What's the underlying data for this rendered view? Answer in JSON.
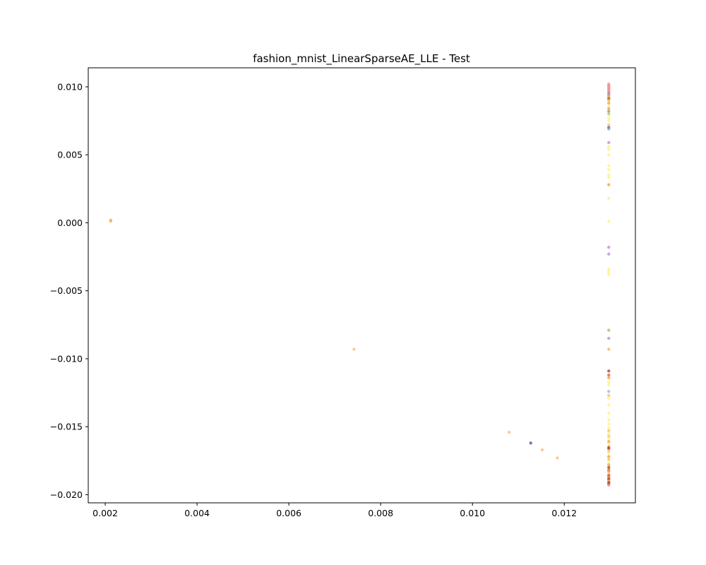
{
  "chart_data": {
    "type": "scatter",
    "title": "fashion_mnist_LinearSparseAE_LLE - Test",
    "xlabel": "",
    "ylabel": "",
    "xlim": [
      0.00163,
      0.01355
    ],
    "ylim": [
      -0.0206,
      0.0114
    ],
    "grid": false,
    "legend": "none",
    "xticks": [
      {
        "value": 0.002,
        "label": "0.002"
      },
      {
        "value": 0.004,
        "label": "0.004"
      },
      {
        "value": 0.006,
        "label": "0.006"
      },
      {
        "value": 0.008,
        "label": "0.008"
      },
      {
        "value": 0.01,
        "label": "0.010"
      },
      {
        "value": 0.012,
        "label": "0.012"
      }
    ],
    "yticks": [
      {
        "value": 0.01,
        "label": "0.010"
      },
      {
        "value": 0.005,
        "label": "0.005"
      },
      {
        "value": 0.0,
        "label": "0.000"
      },
      {
        "value": -0.005,
        "label": "−0.005"
      },
      {
        "value": -0.01,
        "label": "−0.010"
      },
      {
        "value": -0.015,
        "label": "−0.015"
      },
      {
        "value": -0.02,
        "label": "−0.020"
      }
    ],
    "points": [
      {
        "x": 0.00212,
        "y": 0.00018,
        "color": "#f5a030"
      },
      {
        "x": 0.00212,
        "y": 0.00012,
        "color": "#f7b060"
      },
      {
        "x": 0.00742,
        "y": -0.0093,
        "color": "#f7b870"
      },
      {
        "x": 0.0108,
        "y": -0.0154,
        "color": "#f7b870"
      },
      {
        "x": 0.01127,
        "y": -0.0162,
        "color": "#4b4ba8"
      },
      {
        "x": 0.01152,
        "y": -0.0167,
        "color": "#f7b870"
      },
      {
        "x": 0.01185,
        "y": -0.0173,
        "color": "#f7b870"
      },
      {
        "x": 0.01297,
        "y": 0.0102,
        "color": "#f48c8c"
      },
      {
        "x": 0.01297,
        "y": 0.0101,
        "color": "#f48c8c"
      },
      {
        "x": 0.01297,
        "y": 0.01,
        "color": "#f48c8c"
      },
      {
        "x": 0.01297,
        "y": 0.0099,
        "color": "#f48c8c"
      },
      {
        "x": 0.01297,
        "y": 0.0098,
        "color": "#f48c8c"
      },
      {
        "x": 0.01297,
        "y": 0.0097,
        "color": "#f48c8c"
      },
      {
        "x": 0.01297,
        "y": 0.0096,
        "color": "#f48c8c"
      },
      {
        "x": 0.01297,
        "y": 0.0095,
        "color": "#6a8fc8"
      },
      {
        "x": 0.01297,
        "y": 0.0094,
        "color": "#f48c8c"
      },
      {
        "x": 0.01297,
        "y": 0.0093,
        "color": "#8fc05a"
      },
      {
        "x": 0.01297,
        "y": 0.0092,
        "color": "#f5a030"
      },
      {
        "x": 0.01297,
        "y": 0.0091,
        "color": "#a83a3a"
      },
      {
        "x": 0.01297,
        "y": 0.009,
        "color": "#f7c060"
      },
      {
        "x": 0.01297,
        "y": 0.0088,
        "color": "#f5a030"
      },
      {
        "x": 0.01297,
        "y": 0.0086,
        "color": "#fff27a"
      },
      {
        "x": 0.01297,
        "y": 0.0084,
        "color": "#c8a878"
      },
      {
        "x": 0.01297,
        "y": 0.0082,
        "color": "#d08040"
      },
      {
        "x": 0.01297,
        "y": 0.008,
        "color": "#a0d070"
      },
      {
        "x": 0.01297,
        "y": 0.0077,
        "color": "#fff27a"
      },
      {
        "x": 0.01297,
        "y": 0.0075,
        "color": "#fff27a"
      },
      {
        "x": 0.01297,
        "y": 0.0072,
        "color": "#f7c060"
      },
      {
        "x": 0.01297,
        "y": 0.007,
        "color": "#4b4ba8"
      },
      {
        "x": 0.01297,
        "y": 0.0069,
        "color": "#8fa8c8"
      },
      {
        "x": 0.01297,
        "y": 0.0059,
        "color": "#b888d0"
      },
      {
        "x": 0.01297,
        "y": 0.0056,
        "color": "#fff27a"
      },
      {
        "x": 0.01297,
        "y": 0.0054,
        "color": "#fff27a"
      },
      {
        "x": 0.01297,
        "y": 0.005,
        "color": "#fff27a"
      },
      {
        "x": 0.01297,
        "y": 0.0042,
        "color": "#fff27a"
      },
      {
        "x": 0.01297,
        "y": 0.0039,
        "color": "#fff27a"
      },
      {
        "x": 0.01297,
        "y": 0.0035,
        "color": "#fff27a"
      },
      {
        "x": 0.01297,
        "y": 0.0033,
        "color": "#fff27a"
      },
      {
        "x": 0.01297,
        "y": 0.0028,
        "color": "#f5a030"
      },
      {
        "x": 0.01297,
        "y": 0.0018,
        "color": "#fff27a"
      },
      {
        "x": 0.01297,
        "y": 0.0001,
        "color": "#fff27a"
      },
      {
        "x": 0.01297,
        "y": -0.0018,
        "color": "#b888d0"
      },
      {
        "x": 0.01297,
        "y": -0.0023,
        "color": "#b888d0"
      },
      {
        "x": 0.01297,
        "y": -0.0034,
        "color": "#fff27a"
      },
      {
        "x": 0.01297,
        "y": -0.0036,
        "color": "#fff27a"
      },
      {
        "x": 0.01297,
        "y": -0.0038,
        "color": "#fff27a"
      },
      {
        "x": 0.01297,
        "y": -0.0079,
        "color": "#8fc05a"
      },
      {
        "x": 0.01297,
        "y": -0.0085,
        "color": "#b888d0"
      },
      {
        "x": 0.01297,
        "y": -0.0093,
        "color": "#f7b060"
      },
      {
        "x": 0.01297,
        "y": -0.0109,
        "color": "#a83a3a"
      },
      {
        "x": 0.01297,
        "y": -0.0112,
        "color": "#d06040"
      },
      {
        "x": 0.01297,
        "y": -0.0114,
        "color": "#f5a030"
      },
      {
        "x": 0.01297,
        "y": -0.0117,
        "color": "#fff27a"
      },
      {
        "x": 0.01297,
        "y": -0.0119,
        "color": "#fff27a"
      },
      {
        "x": 0.01297,
        "y": -0.0124,
        "color": "#8fb8e0"
      },
      {
        "x": 0.01297,
        "y": -0.0127,
        "color": "#f7c060"
      },
      {
        "x": 0.01297,
        "y": -0.0129,
        "color": "#fff27a"
      },
      {
        "x": 0.01297,
        "y": -0.0134,
        "color": "#fff27a"
      },
      {
        "x": 0.01297,
        "y": -0.014,
        "color": "#fff27a"
      },
      {
        "x": 0.01297,
        "y": -0.0145,
        "color": "#fff27a"
      },
      {
        "x": 0.01297,
        "y": -0.0148,
        "color": "#fff27a"
      },
      {
        "x": 0.01297,
        "y": -0.0151,
        "color": "#fff27a"
      },
      {
        "x": 0.01297,
        "y": -0.0153,
        "color": "#f7c060"
      },
      {
        "x": 0.01297,
        "y": -0.0155,
        "color": "#fff27a"
      },
      {
        "x": 0.01297,
        "y": -0.0157,
        "color": "#f7c060"
      },
      {
        "x": 0.01297,
        "y": -0.0159,
        "color": "#fff27a"
      },
      {
        "x": 0.01297,
        "y": -0.0161,
        "color": "#f5a030"
      },
      {
        "x": 0.01297,
        "y": -0.0163,
        "color": "#fff27a"
      },
      {
        "x": 0.01297,
        "y": -0.0165,
        "color": "#d06040"
      },
      {
        "x": 0.01297,
        "y": -0.0166,
        "color": "#a83a3a"
      },
      {
        "x": 0.01297,
        "y": -0.0168,
        "color": "#f7c060"
      },
      {
        "x": 0.01297,
        "y": -0.017,
        "color": "#fff27a"
      },
      {
        "x": 0.01297,
        "y": -0.0172,
        "color": "#f5a030"
      },
      {
        "x": 0.01297,
        "y": -0.0174,
        "color": "#f7c060"
      },
      {
        "x": 0.01297,
        "y": -0.0176,
        "color": "#fff27a"
      },
      {
        "x": 0.01297,
        "y": -0.0178,
        "color": "#f5a030"
      },
      {
        "x": 0.01297,
        "y": -0.018,
        "color": "#a83a3a"
      },
      {
        "x": 0.01297,
        "y": -0.0182,
        "color": "#d06040"
      },
      {
        "x": 0.01297,
        "y": -0.0183,
        "color": "#f5a030"
      },
      {
        "x": 0.01297,
        "y": -0.0185,
        "color": "#f7c060"
      },
      {
        "x": 0.01297,
        "y": -0.0186,
        "color": "#b03c3c"
      },
      {
        "x": 0.01297,
        "y": -0.0187,
        "color": "#f5a030"
      },
      {
        "x": 0.01297,
        "y": -0.0188,
        "color": "#d06040"
      },
      {
        "x": 0.01297,
        "y": -0.0189,
        "color": "#a83a3a"
      },
      {
        "x": 0.01297,
        "y": -0.019,
        "color": "#f7c060"
      },
      {
        "x": 0.01297,
        "y": -0.0191,
        "color": "#b03c3c"
      },
      {
        "x": 0.01297,
        "y": -0.0192,
        "color": "#a83a3a"
      },
      {
        "x": 0.01297,
        "y": -0.0193,
        "color": "#f48c8c"
      }
    ]
  }
}
